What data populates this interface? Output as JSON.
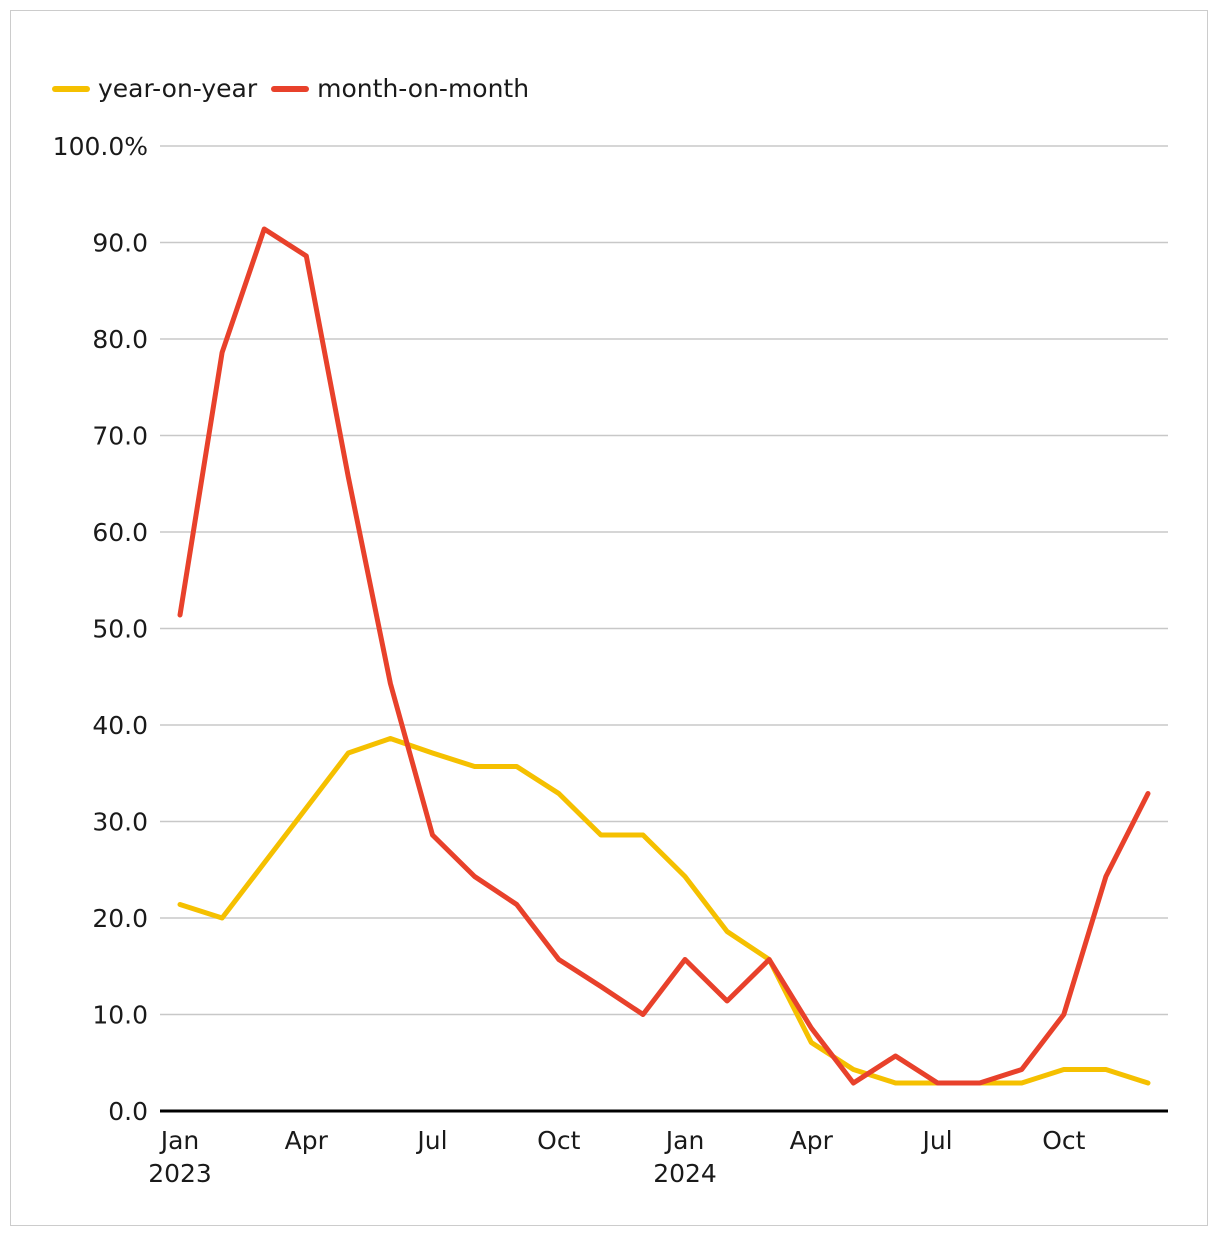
{
  "chart_data": {
    "type": "line",
    "title": "",
    "xlabel": "",
    "ylabel": "",
    "ylim": [
      0,
      100
    ],
    "grid": true,
    "legend_position": "top-left",
    "y_ticks": [
      "100.0%",
      "90.0",
      "80.0",
      "70.0",
      "60.0",
      "50.0",
      "40.0",
      "30.0",
      "20.0",
      "10.0",
      "0.0"
    ],
    "x_tick_labels": [
      {
        "index": 0,
        "month": "Jan",
        "year": "2023"
      },
      {
        "index": 3,
        "month": "Apr",
        "year": ""
      },
      {
        "index": 6,
        "month": "Jul",
        "year": ""
      },
      {
        "index": 9,
        "month": "Oct",
        "year": ""
      },
      {
        "index": 12,
        "month": "Jan",
        "year": "2024"
      },
      {
        "index": 15,
        "month": "Apr",
        "year": ""
      },
      {
        "index": 18,
        "month": "Jul",
        "year": ""
      },
      {
        "index": 21,
        "month": "Oct",
        "year": ""
      }
    ],
    "x": [
      "Jan 2023",
      "Feb 2023",
      "Mar 2023",
      "Apr 2023",
      "May 2023",
      "Jun 2023",
      "Jul 2023",
      "Aug 2023",
      "Sep 2023",
      "Oct 2023",
      "Nov 2023",
      "Dec 2023",
      "Jan 2024",
      "Feb 2024",
      "Mar 2024",
      "Apr 2024",
      "May 2024",
      "Jun 2024",
      "Jul 2024",
      "Aug 2024",
      "Sep 2024",
      "Oct 2024",
      "Nov 2024",
      "Dec 2024"
    ],
    "series": [
      {
        "name": "year-on-year",
        "color": "#f5c000",
        "values": [
          21.4,
          20.0,
          25.7,
          31.4,
          37.1,
          38.6,
          37.1,
          35.7,
          35.7,
          32.9,
          28.6,
          28.6,
          24.3,
          18.6,
          15.7,
          7.1,
          4.3,
          2.9,
          2.9,
          2.9,
          2.9,
          4.3,
          4.3,
          2.9
        ]
      },
      {
        "name": "month-on-month",
        "color": "#e8412b",
        "values": [
          51.4,
          78.6,
          91.4,
          88.6,
          65.7,
          44.3,
          28.6,
          24.3,
          21.4,
          15.7,
          12.9,
          10.0,
          15.7,
          11.4,
          15.7,
          8.6,
          2.9,
          5.7,
          2.9,
          2.9,
          4.3,
          10.0,
          24.3,
          32.9
        ]
      }
    ]
  }
}
